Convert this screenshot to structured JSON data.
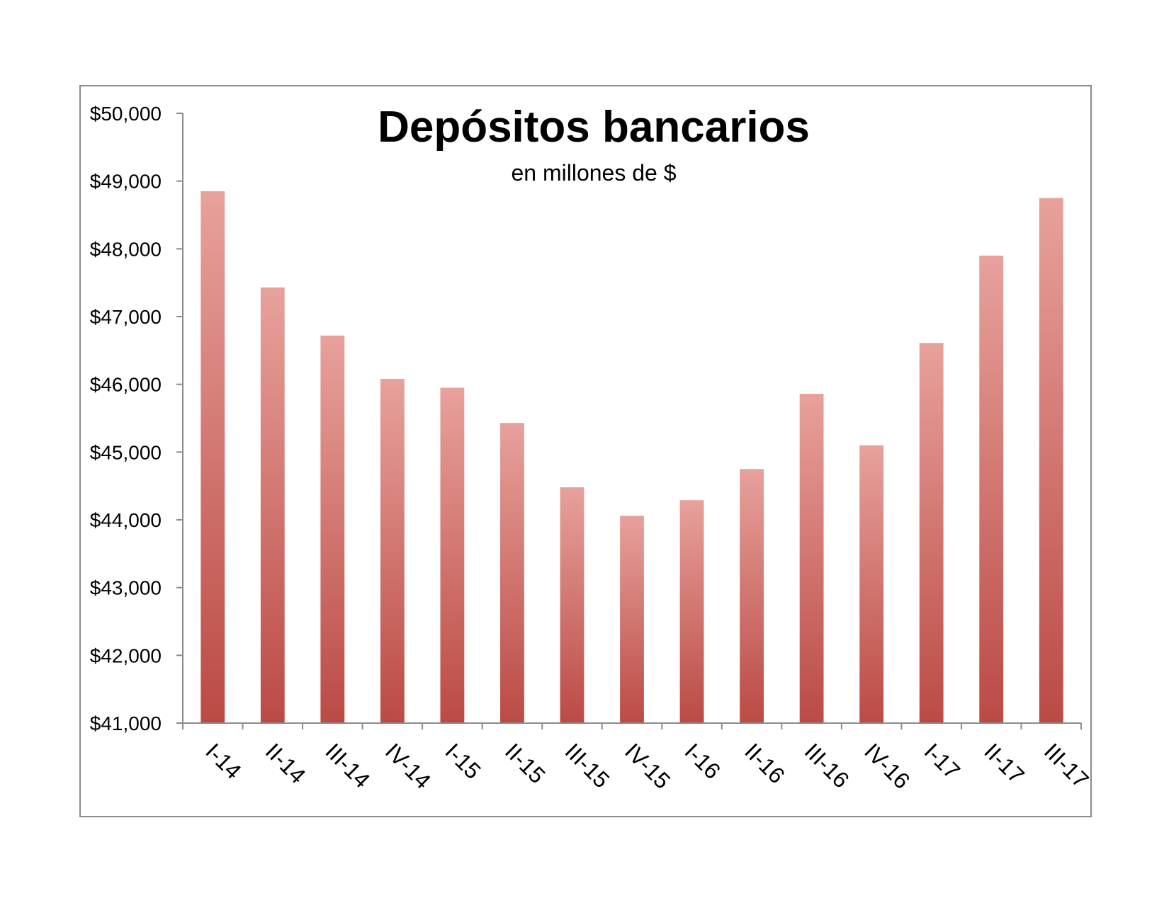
{
  "chart_data": {
    "type": "bar",
    "title": "Depósitos bancarios",
    "subtitle": "en millones de $",
    "xlabel": "",
    "ylabel": "",
    "categories": [
      "I-14",
      "II-14",
      "III-14",
      "IV-14",
      "I-15",
      "II-15",
      "III-15",
      "IV-15",
      "I-16",
      "II-16",
      "III-16",
      "IV-16",
      "I-17",
      "II-17",
      "III-17"
    ],
    "values": [
      48850,
      47430,
      46720,
      46080,
      45950,
      45430,
      44480,
      44060,
      44290,
      44750,
      45860,
      45100,
      46610,
      47900,
      48750
    ],
    "ylim": [
      41000,
      50000
    ],
    "y_ticks": [
      41000,
      42000,
      43000,
      44000,
      45000,
      46000,
      47000,
      48000,
      49000,
      50000
    ],
    "y_tick_labels": [
      "$41,000",
      "$42,000",
      "$43,000",
      "$44,000",
      "$45,000",
      "$46,000",
      "$47,000",
      "$48,000",
      "$49,000",
      "$50,000"
    ],
    "grid": false,
    "legend": "none",
    "colors": {
      "bar_top": "#e8a19b",
      "bar_bottom": "#bb4a45",
      "axis": "#8c8c8c",
      "frame": "#8c8c8c"
    }
  }
}
